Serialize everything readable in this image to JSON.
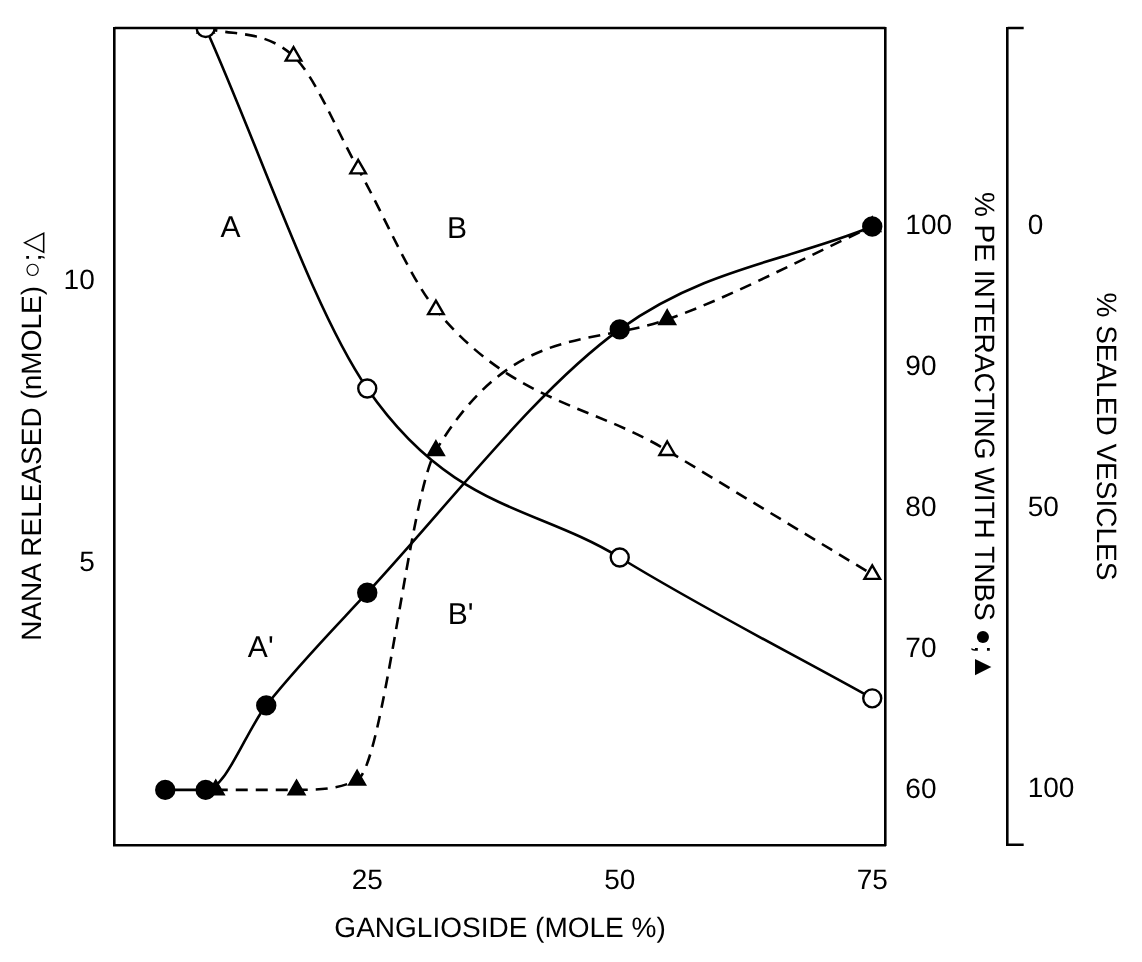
{
  "chart_data": {
    "type": "line",
    "xlabel": "GANGLIOSIDE (MOLE %)",
    "ylabel": "NANA RELEASED (nMOLE) ○;△",
    "y2label": "% PE INTERACTING WITH TNBS ●;▲",
    "y3label": "% SEALED VESICLES",
    "xlim": [
      0,
      76.3
    ],
    "xticks": [
      25,
      50,
      75
    ],
    "ylim": [
      0,
      14.5
    ],
    "yticks": [
      5,
      10
    ],
    "y2lim": [
      56.1,
      114.1
    ],
    "y2ticks": [
      60,
      70,
      80,
      90,
      100
    ],
    "y3lim": [
      109.8,
      -35.3
    ],
    "y3ticks": [
      0,
      50,
      100
    ],
    "grid": false,
    "legend": false,
    "series": [
      {
        "name": "A",
        "color": "#000000",
        "axis": "y",
        "marker": "circle",
        "line_style": "solid",
        "x": [
          9,
          25,
          50,
          75
        ],
        "values": [
          14.5,
          8.1,
          5.1,
          2.6
        ]
      },
      {
        "name": "B",
        "color": "#000000",
        "axis": "y",
        "marker": "triangle",
        "line_style": "dashed",
        "x": [
          9,
          17.7,
          24.1,
          31.8,
          54.7,
          75
        ],
        "values": [
          14.5,
          14.0,
          12.0,
          9.5,
          7.0,
          4.8
        ]
      },
      {
        "name": "A'",
        "color": "#000000",
        "axis": "y2",
        "marker": "circle",
        "line_style": "solid",
        "x": [
          5,
          9,
          15,
          25,
          50,
          75
        ],
        "values": [
          60,
          60,
          66,
          74,
          92.7,
          100
        ]
      },
      {
        "name": "B'",
        "color": "#000000",
        "axis": "y2",
        "marker": "triangle",
        "line_style": "dashed",
        "x": [
          10,
          18,
          24,
          31.8,
          54.7,
          75
        ],
        "values": [
          60,
          60,
          60.7,
          84.1,
          93.4,
          100
        ]
      }
    ]
  }
}
